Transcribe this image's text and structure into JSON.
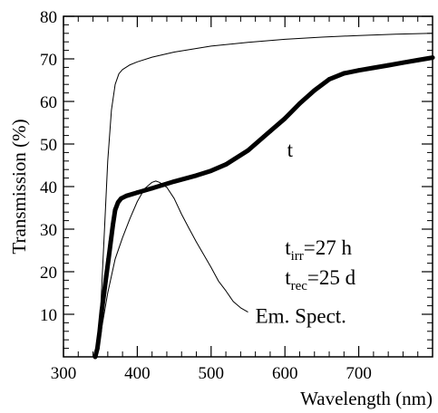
{
  "chart_data": {
    "type": "line",
    "title": "",
    "xlabel": "Wavelength (nm)",
    "ylabel": "Transmission (%)",
    "xlim": [
      300,
      800
    ],
    "ylim": [
      0,
      80
    ],
    "x_ticks": [
      300,
      400,
      500,
      600,
      700
    ],
    "y_ticks": [
      10,
      20,
      30,
      40,
      50,
      60,
      70,
      80
    ],
    "grid": false,
    "series": [
      {
        "name": "",
        "style": "thin-line",
        "x": [
          345,
          350,
          355,
          360,
          365,
          370,
          375,
          380,
          390,
          400,
          420,
          450,
          500,
          550,
          600,
          650,
          700,
          750,
          800
        ],
        "y": [
          0,
          10,
          28,
          46,
          58,
          64,
          66.5,
          67.5,
          68.6,
          69.3,
          70.4,
          71.6,
          73.0,
          73.9,
          74.6,
          75.1,
          75.5,
          75.8,
          76.0
        ]
      },
      {
        "name": "t",
        "style": "thick-dotted",
        "x": [
          343,
          346,
          349,
          352,
          355,
          358,
          361,
          364,
          367,
          370,
          374,
          378,
          385,
          400,
          420,
          450,
          480,
          500,
          520,
          550,
          580,
          600,
          620,
          640,
          660,
          680,
          700,
          720,
          740,
          760,
          780,
          800
        ],
        "y": [
          0,
          2,
          6,
          11,
          15,
          19,
          23,
          27,
          31,
          34.5,
          36.3,
          37.2,
          37.8,
          38.6,
          39.6,
          41.2,
          42.6,
          43.7,
          45.2,
          48.5,
          53.0,
          56.0,
          59.5,
          62.6,
          65.2,
          66.6,
          67.3,
          67.9,
          68.5,
          69.1,
          69.7,
          70.3
        ]
      },
      {
        "name": "",
        "style": "thin-line",
        "x": [
          350,
          360,
          370,
          380,
          390,
          400,
          410,
          420,
          425,
          430,
          440,
          450,
          460,
          470,
          480,
          490,
          500,
          510,
          520,
          530,
          540,
          550
        ],
        "y": [
          5,
          15,
          23,
          28,
          32.5,
          36.5,
          39.5,
          41,
          41.3,
          41,
          39.8,
          37.2,
          33.5,
          30.2,
          27,
          24,
          21,
          17.8,
          15.5,
          13,
          11.5,
          10.5
        ]
      }
    ],
    "annotations": [
      {
        "id": "t-label",
        "text": "t",
        "x": 603,
        "y": 47
      },
      {
        "id": "em-label",
        "text": "Em. Spect.",
        "x": 560,
        "y": 8
      },
      {
        "id": "t-irr",
        "base": "t",
        "sub": "irr",
        "rest": "=27 h",
        "x": 600,
        "y": 24
      },
      {
        "id": "t-rec",
        "base": "t",
        "sub": "rec",
        "rest": "=25 d",
        "x": 600,
        "y": 17
      }
    ]
  }
}
